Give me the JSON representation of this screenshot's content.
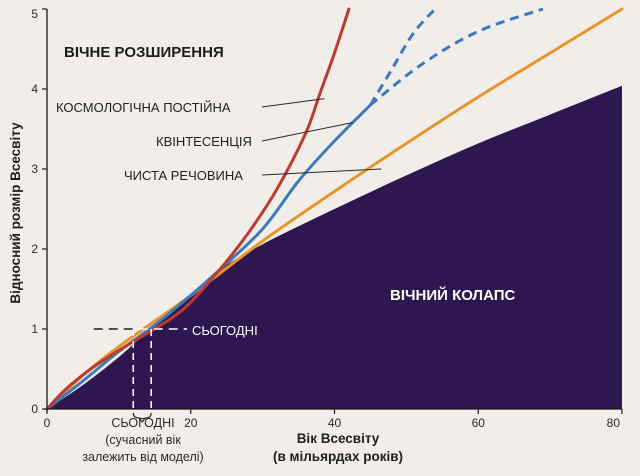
{
  "chart_data": {
    "type": "line",
    "xlabel": "Вік Всесвіту",
    "xlabel_line2": "(в мільярдах років)",
    "ylabel": "Відносний розмір Всесвіту",
    "xlim": [
      0,
      80
    ],
    "ylim": [
      0,
      5
    ],
    "x_ticks": [
      "0",
      "20",
      "40",
      "60",
      "80"
    ],
    "y_ticks": [
      "0",
      "1",
      "2",
      "3",
      "4",
      "5"
    ],
    "grid": false,
    "regions": {
      "top": "ВІЧНЕ РОЗШИРЕННЯ",
      "bottom": "ВІЧНИЙ КОЛАПС"
    },
    "collapse_boundary": [
      {
        "x": 0,
        "y": 0
      },
      {
        "x": 5,
        "y": 0.3
      },
      {
        "x": 10,
        "y": 0.65
      },
      {
        "x": 15,
        "y": 1.05
      },
      {
        "x": 20,
        "y": 1.42
      },
      {
        "x": 24,
        "y": 1.74
      },
      {
        "x": 30,
        "y": 2.06
      },
      {
        "x": 40,
        "y": 2.5
      },
      {
        "x": 50,
        "y": 2.92
      },
      {
        "x": 60,
        "y": 3.32
      },
      {
        "x": 70,
        "y": 3.68
      },
      {
        "x": 80,
        "y": 4.04
      }
    ],
    "series": [
      {
        "name": "КОСМОЛОГІЧНА ПОСТІЙНА",
        "color": "#c0392b",
        "points": [
          {
            "x": 0,
            "y": 0
          },
          {
            "x": 3,
            "y": 0.28
          },
          {
            "x": 8,
            "y": 0.62
          },
          {
            "x": 14,
            "y": 0.95
          },
          {
            "x": 19,
            "y": 1.25
          },
          {
            "x": 24,
            "y": 1.74
          },
          {
            "x": 28,
            "y": 2.2
          },
          {
            "x": 32,
            "y": 2.75
          },
          {
            "x": 36,
            "y": 3.45
          },
          {
            "x": 38,
            "y": 3.95
          },
          {
            "x": 40,
            "y": 4.45
          },
          {
            "x": 42,
            "y": 5.0
          }
        ]
      },
      {
        "name": "КВІНТЕСЕНЦІЯ",
        "color": "#3a7bbf",
        "points": [
          {
            "x": 0,
            "y": 0
          },
          {
            "x": 5,
            "y": 0.35
          },
          {
            "x": 10,
            "y": 0.72
          },
          {
            "x": 15,
            "y": 1.05
          },
          {
            "x": 20,
            "y": 1.42
          },
          {
            "x": 24,
            "y": 1.74
          },
          {
            "x": 30,
            "y": 2.25
          },
          {
            "x": 35,
            "y": 2.85
          },
          {
            "x": 40,
            "y": 3.35
          },
          {
            "x": 45,
            "y": 3.8
          }
        ],
        "dashed_branches": [
          [
            {
              "x": 45,
              "y": 3.8
            },
            {
              "x": 48,
              "y": 4.25
            },
            {
              "x": 51,
              "y": 4.7
            },
            {
              "x": 54,
              "y": 5.0
            }
          ],
          [
            {
              "x": 45,
              "y": 3.8
            },
            {
              "x": 52,
              "y": 4.3
            },
            {
              "x": 60,
              "y": 4.72
            },
            {
              "x": 69,
              "y": 5.0
            }
          ]
        ]
      },
      {
        "name": "ЧИСТА РЕЧОВИНА",
        "color": "#e8962b",
        "points": [
          {
            "x": 0,
            "y": 0
          },
          {
            "x": 5,
            "y": 0.42
          },
          {
            "x": 10,
            "y": 0.78
          },
          {
            "x": 20,
            "y": 1.42
          },
          {
            "x": 30,
            "y": 2.1
          },
          {
            "x": 40,
            "y": 2.72
          },
          {
            "x": 50,
            "y": 3.32
          },
          {
            "x": 60,
            "y": 3.9
          },
          {
            "x": 70,
            "y": 4.45
          },
          {
            "x": 80,
            "y": 5.0
          }
        ]
      }
    ],
    "today": {
      "label": "СЬОГОДНІ",
      "y": 1,
      "x_range": [
        12,
        14.5
      ],
      "note_lines": [
        "СЬОГОДНІ",
        "(сучасний вік",
        "залежить від моделі)"
      ]
    }
  }
}
